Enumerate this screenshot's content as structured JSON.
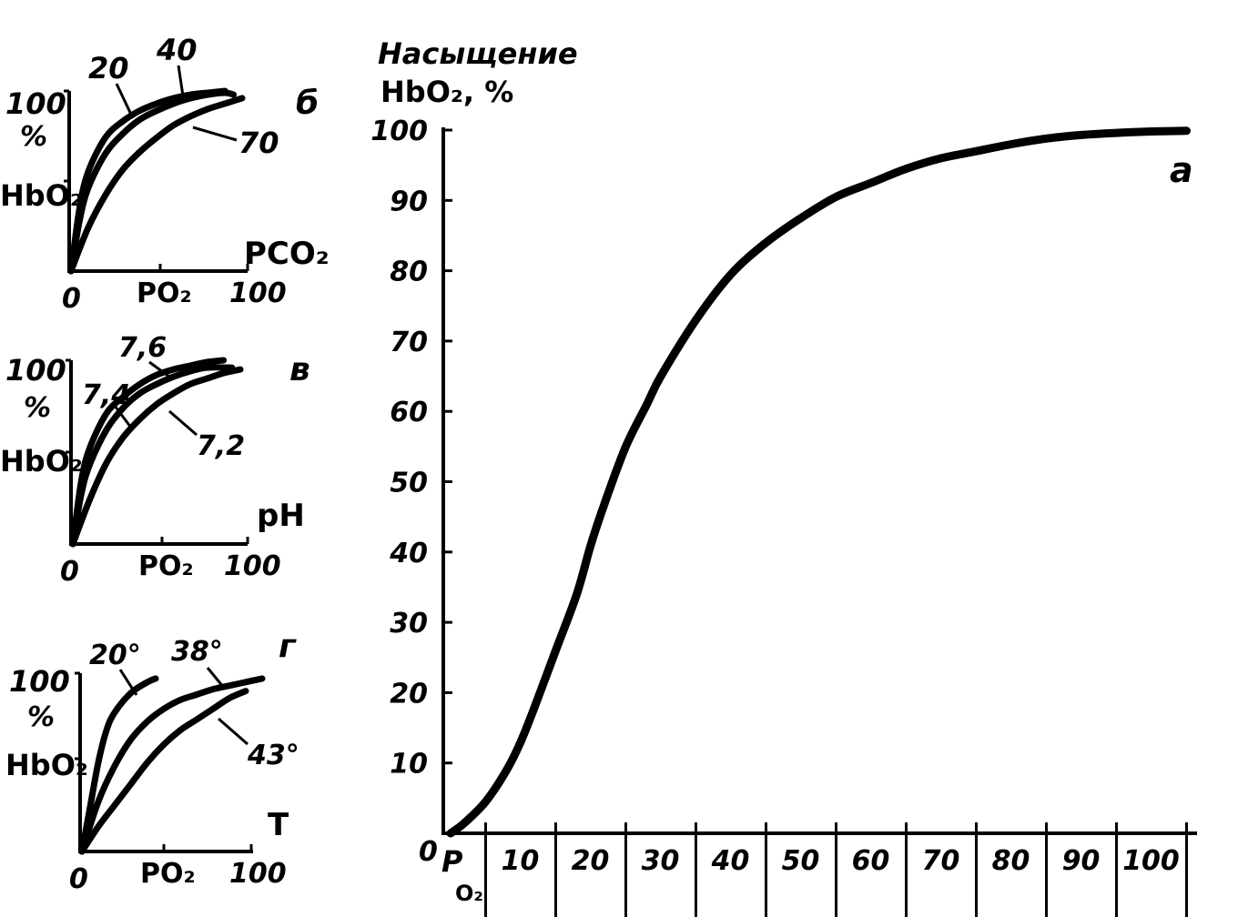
{
  "chart_data": [
    {
      "id": "a",
      "type": "line",
      "panel_label": "а",
      "ylabel_line1": "Насыщение",
      "ylabel_line2": "HbO₂, %",
      "xlabel_main": "P",
      "xlabel_sub": "O₂",
      "origin_label": "0",
      "xlim": [
        0,
        105
      ],
      "ylim": [
        0,
        100
      ],
      "xticks": [
        "10",
        "20",
        "30",
        "40",
        "50",
        "60",
        "70",
        "80",
        "90",
        "100"
      ],
      "yticks": [
        "0",
        "10",
        "20",
        "30",
        "40",
        "50",
        "60",
        "70",
        "80",
        "90",
        "100"
      ],
      "series": [
        {
          "x": [
            0,
            2,
            5,
            8,
            10,
            12,
            15,
            18,
            20,
            22,
            25,
            28,
            30,
            35,
            40,
            45,
            50,
            55,
            60,
            65,
            70,
            75,
            80,
            85,
            90,
            95,
            100,
            105
          ],
          "y": [
            0,
            1.5,
            4.5,
            9,
            13,
            18,
            26,
            34,
            41,
            47,
            55,
            61,
            65,
            73,
            79.5,
            84,
            87.5,
            90.5,
            92.5,
            94.5,
            96,
            97,
            98,
            98.8,
            99.3,
            99.6,
            99.8,
            99.9
          ]
        }
      ]
    },
    {
      "id": "b",
      "type": "line",
      "panel_label": "б",
      "ylabel_top": "100",
      "ylabel_mid": "%",
      "ylabel_bottom": "HbO₂",
      "variable": "PCO₂",
      "xlabel": "PO₂",
      "x_origin": "0",
      "x_max": "100",
      "series": [
        {
          "name": "20",
          "x": [
            0,
            5,
            10,
            20,
            30,
            40,
            50,
            60,
            70,
            80,
            90
          ],
          "y": [
            0,
            35,
            55,
            74,
            83,
            89,
            93,
            96,
            98,
            99,
            100
          ]
        },
        {
          "name": "40",
          "x": [
            0,
            5,
            10,
            20,
            30,
            40,
            50,
            60,
            70,
            80,
            90,
            95
          ],
          "y": [
            0,
            28,
            46,
            65,
            76,
            84,
            89,
            93,
            96,
            98,
            99,
            98
          ]
        },
        {
          "name": "70",
          "x": [
            0,
            10,
            20,
            30,
            40,
            50,
            60,
            70,
            80,
            90,
            100
          ],
          "y": [
            0,
            24,
            42,
            56,
            66,
            74,
            81,
            86,
            90,
            93,
            96
          ]
        }
      ]
    },
    {
      "id": "v",
      "type": "line",
      "panel_label": "в",
      "ylabel_top": "100",
      "ylabel_mid": "%",
      "ylabel_bottom": "HbO₂",
      "variable": "pH",
      "xlabel": "PO₂",
      "x_origin": "0",
      "x_max": "100",
      "series": [
        {
          "name": "7,6",
          "x": [
            0,
            5,
            10,
            20,
            30,
            40,
            50,
            60,
            70,
            80,
            90
          ],
          "y": [
            0,
            34,
            52,
            71,
            80,
            87,
            92,
            95,
            97,
            99,
            100
          ]
        },
        {
          "name": "7,4",
          "x": [
            0,
            5,
            10,
            20,
            30,
            40,
            50,
            60,
            70,
            80,
            95
          ],
          "y": [
            0,
            27,
            43,
            62,
            74,
            82,
            87,
            91,
            94,
            96,
            96
          ]
        },
        {
          "name": "7,2",
          "x": [
            0,
            10,
            20,
            30,
            40,
            50,
            60,
            70,
            80,
            90,
            100
          ],
          "y": [
            0,
            24,
            44,
            58,
            68,
            76,
            82,
            87,
            90,
            93,
            95
          ]
        }
      ]
    },
    {
      "id": "g",
      "type": "line",
      "panel_label": "г",
      "ylabel_top": "100",
      "ylabel_mid": "%",
      "ylabel_bottom": "HbO₂",
      "variable": "T",
      "xlabel": "PO₂",
      "x_origin": "0",
      "x_max": "100",
      "series": [
        {
          "name": "20°",
          "x": [
            0,
            5,
            10,
            15,
            20,
            30,
            40,
            45
          ],
          "y": [
            0,
            25,
            50,
            68,
            78,
            89,
            95,
            97
          ]
        },
        {
          "name": "38°",
          "x": [
            0,
            10,
            20,
            30,
            40,
            50,
            60,
            70,
            80,
            90,
            100,
            110
          ],
          "y": [
            0,
            28,
            48,
            63,
            73,
            80,
            85,
            88,
            91,
            93,
            95,
            97
          ]
        },
        {
          "name": "43°",
          "x": [
            0,
            10,
            20,
            30,
            40,
            50,
            60,
            70,
            80,
            90,
            100
          ],
          "y": [
            0,
            14,
            26,
            38,
            50,
            60,
            68,
            74,
            80,
            86,
            90
          ]
        }
      ]
    }
  ]
}
